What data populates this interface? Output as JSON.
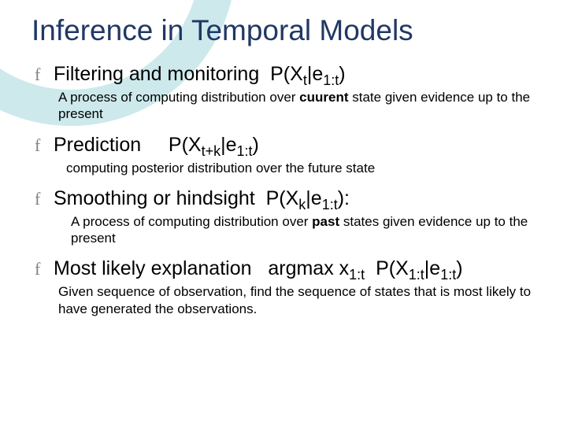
{
  "colors": {
    "title": "#203864",
    "body": "#000000",
    "bullet_glyph": "#808080",
    "swoosh": "#cde9ec",
    "background": "#ffffff"
  },
  "glyph": "f",
  "title": "Inference in Temporal Models",
  "items": [
    {
      "heading_html": "Filtering and monitoring&nbsp;&nbsp;P(X<sub>t</sub>|e<sub>1:t</sub>)",
      "desc_html": "A process of computing distribution over <b>cuurent</b> state given evidence up to the present",
      "desc_class": "desc"
    },
    {
      "heading_html": "Prediction&nbsp;&nbsp;&nbsp;&nbsp;&nbsp;P(X<sub>t+k</sub>|e<sub>1:t</sub>)",
      "desc_html": "computing posterior distribution over the future state",
      "desc_class": "desc in2"
    },
    {
      "heading_html": "Smoothing or hindsight&nbsp;&nbsp;P(X<sub>k</sub>|e<sub>1:t</sub>):",
      "desc_html": "A process of computing distribution over <b>past</b> states given evidence up to the present",
      "desc_class": "desc in3"
    },
    {
      "heading_html": "Most likely explanation&nbsp;&nbsp;&nbsp;argmax x<sub>1:t</sub>&nbsp;&nbsp;P(X<sub>1:t</sub>|e<sub>1:t</sub>)",
      "desc_html": "Given sequence of observation, find the sequence of states that is most likely to have generated the observations.",
      "desc_class": "desc"
    }
  ]
}
